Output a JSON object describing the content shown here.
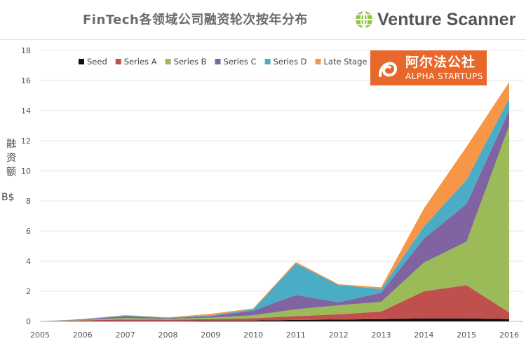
{
  "header": {
    "title": "FinTech各领域公司融资轮次按年分布",
    "brand_name": "Venture Scanner"
  },
  "badge": {
    "cn": "阿尔法公社",
    "en": "ALPHA STARTUPS"
  },
  "axis": {
    "ylabel_chars": [
      "融",
      "资",
      "额"
    ],
    "ylabel_unit": "B$"
  },
  "colors": {
    "seed": "#111111",
    "series_a": "#c0504d",
    "series_b": "#9bbb59",
    "series_c": "#8064a2",
    "series_d": "#4bacc6",
    "late_stage": "#f79646",
    "grid": "#e6e6e6",
    "brand_green": "#8cc63f",
    "badge": "#e8672a"
  },
  "chart_data": {
    "type": "area",
    "stacked": true,
    "title": "FinTech各领域公司融资轮次按年分布",
    "xlabel": "",
    "ylabel": "融资额 B$",
    "x": [
      2005,
      2006,
      2007,
      2008,
      2009,
      2010,
      2011,
      2012,
      2013,
      2014,
      2015,
      2016
    ],
    "ylim": [
      0,
      18
    ],
    "yticks": [
      0,
      2,
      4,
      6,
      8,
      10,
      12,
      14,
      16,
      18
    ],
    "legend_position": "top",
    "series": [
      {
        "name": "Seed",
        "color": "#111111",
        "values": [
          0.0,
          0.02,
          0.03,
          0.03,
          0.05,
          0.06,
          0.1,
          0.12,
          0.15,
          0.2,
          0.2,
          0.15
        ]
      },
      {
        "name": "Series A",
        "color": "#c0504d",
        "values": [
          0.0,
          0.05,
          0.1,
          0.08,
          0.1,
          0.15,
          0.25,
          0.35,
          0.5,
          1.8,
          2.2,
          0.45
        ]
      },
      {
        "name": "Series B",
        "color": "#9bbb59",
        "values": [
          0.0,
          0.03,
          0.1,
          0.06,
          0.1,
          0.2,
          0.45,
          0.6,
          0.65,
          1.9,
          2.9,
          12.4
        ]
      },
      {
        "name": "Series C",
        "color": "#8064a2",
        "values": [
          0.0,
          0.03,
          0.12,
          0.05,
          0.1,
          0.3,
          0.95,
          0.2,
          0.6,
          1.6,
          2.5,
          1.0
        ]
      },
      {
        "name": "Series D",
        "color": "#4bacc6",
        "values": [
          0.0,
          0.02,
          0.04,
          0.03,
          0.05,
          0.1,
          2.1,
          1.15,
          0.25,
          0.8,
          1.6,
          0.8
        ]
      },
      {
        "name": "Late Stage",
        "color": "#f79646",
        "values": [
          0.0,
          0.01,
          0.03,
          0.02,
          0.1,
          0.05,
          0.1,
          0.05,
          0.12,
          1.2,
          2.2,
          1.1
        ]
      }
    ]
  }
}
